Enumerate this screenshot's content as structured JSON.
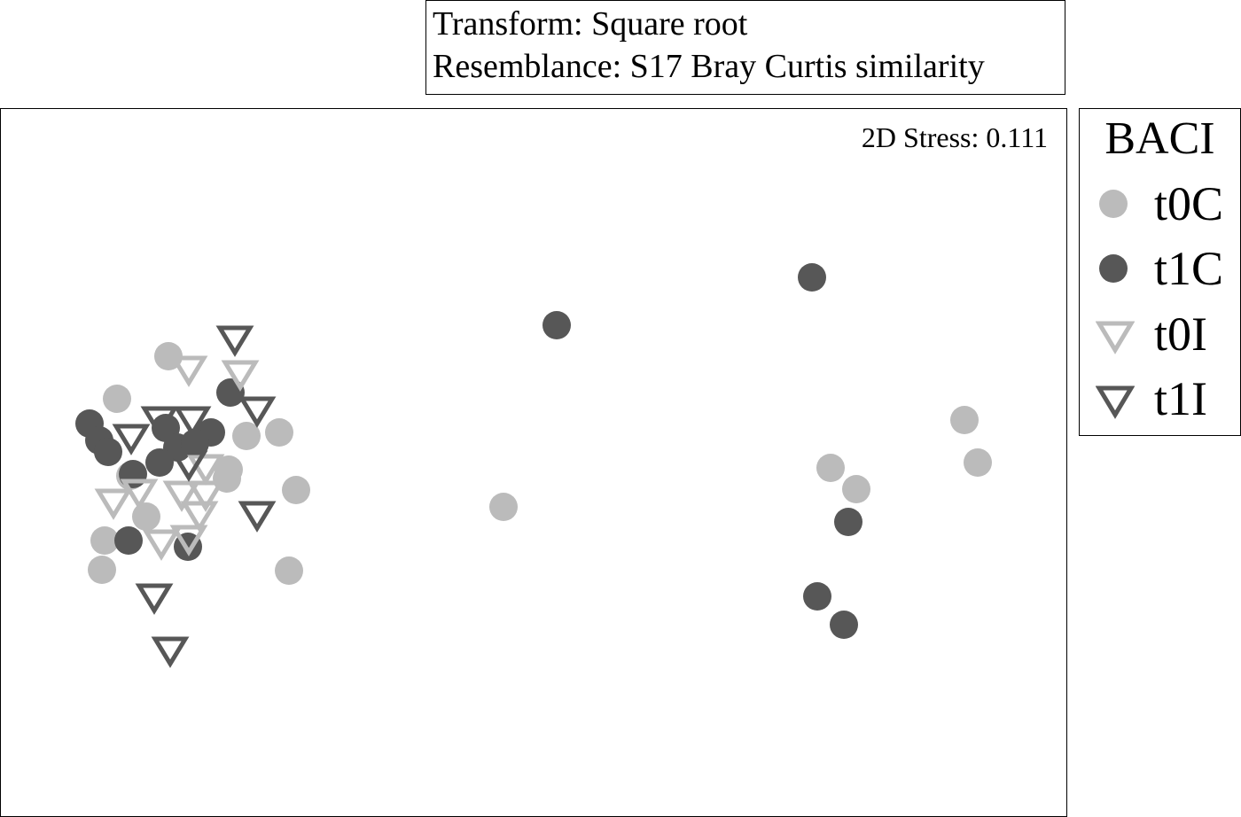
{
  "header": {
    "line1": "Transform: Square root",
    "line2": "Resemblance: S17 Bray Curtis similarity"
  },
  "chart_data": {
    "type": "scatter",
    "title": "",
    "annotation": "2D Stress: 0.111",
    "xlabel": "",
    "ylabel": "",
    "xlim": [
      -6.0,
      6.04
    ],
    "ylim": [
      -3.92,
      4.08
    ],
    "grid": false,
    "legend_title": "BACI",
    "legend_placement": "right",
    "series": [
      {
        "name": "t0C",
        "marker": "circle",
        "color": "#bbbbbb",
        "points": [
          [
            -4.1,
            1.28
          ],
          [
            -4.68,
            0.8
          ],
          [
            -3.22,
            0.38
          ],
          [
            -2.85,
            0.42
          ],
          [
            -3.42,
            0.0
          ],
          [
            -3.44,
            -0.1
          ],
          [
            -2.66,
            -0.23
          ],
          [
            -4.53,
            -0.07
          ],
          [
            -4.35,
            -0.53
          ],
          [
            -4.82,
            -0.8
          ],
          [
            -4.85,
            -1.13
          ],
          [
            -2.74,
            -1.14
          ],
          [
            -0.32,
            -0.42
          ],
          [
            3.37,
            0.02
          ],
          [
            3.66,
            -0.22
          ],
          [
            4.88,
            0.56
          ],
          [
            5.03,
            0.08
          ]
        ]
      },
      {
        "name": "t1C",
        "marker": "circle",
        "color": "#575757",
        "points": [
          [
            -3.4,
            0.87
          ],
          [
            -4.99,
            0.52
          ],
          [
            -4.88,
            0.33
          ],
          [
            -4.78,
            0.2
          ],
          [
            -4.13,
            0.47
          ],
          [
            -4.0,
            0.25
          ],
          [
            -4.2,
            0.08
          ],
          [
            -3.62,
            0.42
          ],
          [
            -3.8,
            0.3
          ],
          [
            -4.5,
            -0.05
          ],
          [
            -4.55,
            -0.8
          ],
          [
            -3.88,
            -0.87
          ],
          [
            0.28,
            1.63
          ],
          [
            3.16,
            2.17
          ],
          [
            3.57,
            -0.59
          ],
          [
            3.22,
            -1.43
          ],
          [
            3.52,
            -1.75
          ]
        ]
      },
      {
        "name": "t0I",
        "marker": "triangle-down-open",
        "color": "#bbbbbb",
        "points": [
          [
            -3.87,
            1.14
          ],
          [
            -3.29,
            1.09
          ],
          [
            -3.68,
            0.03
          ],
          [
            -4.72,
            -0.36
          ],
          [
            -4.43,
            -0.25
          ],
          [
            -3.95,
            -0.27
          ],
          [
            -3.68,
            -0.27
          ],
          [
            -3.75,
            -0.5
          ],
          [
            -4.18,
            -0.82
          ],
          [
            -3.87,
            -0.77
          ]
        ]
      },
      {
        "name": "t1I",
        "marker": "triangle-down-open",
        "color": "#575757",
        "points": [
          [
            -3.35,
            1.48
          ],
          [
            -3.1,
            0.68
          ],
          [
            -4.2,
            0.57
          ],
          [
            -3.83,
            0.57
          ],
          [
            -4.52,
            0.37
          ],
          [
            -3.87,
            0.07
          ],
          [
            -3.1,
            -0.5
          ],
          [
            -4.26,
            -1.43
          ],
          [
            -4.08,
            -2.03
          ]
        ]
      }
    ]
  }
}
